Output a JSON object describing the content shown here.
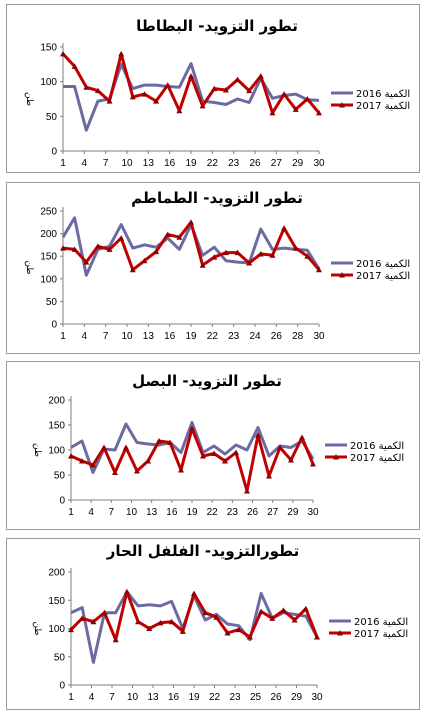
{
  "chart_data": [
    {
      "type": "line",
      "title": "تطور التزويد- البطاطا",
      "ylabel": "طن",
      "ylim": [
        0,
        150
      ],
      "yticks": [
        0,
        50,
        100,
        150
      ],
      "xtick_labels": [
        "1",
        "4",
        "7",
        "10",
        "13",
        "16",
        "19",
        "22",
        "23",
        "26",
        "27",
        "29",
        "30"
      ],
      "series": [
        {
          "name": "2016 الكمية",
          "color": "#6b6ba3",
          "values": [
            93,
            93,
            30,
            72,
            75,
            125,
            90,
            95,
            95,
            93,
            92,
            126,
            72,
            70,
            67,
            75,
            70,
            105,
            76,
            80,
            82,
            74,
            73
          ]
        },
        {
          "name": "2017 الكمية",
          "color": "#c00000",
          "values": [
            140,
            122,
            92,
            87,
            72,
            140,
            78,
            82,
            72,
            95,
            58,
            108,
            65,
            90,
            88,
            103,
            87,
            108,
            55,
            82,
            60,
            75,
            55
          ]
        }
      ]
    },
    {
      "type": "line",
      "title": "تطور التزويد- الطماطم",
      "ylabel": "طن",
      "ylim": [
        0,
        250
      ],
      "yticks": [
        0,
        50,
        100,
        150,
        200,
        250
      ],
      "xtick_labels": [
        "1",
        "4",
        "7",
        "10",
        "13",
        "16",
        "19",
        "22",
        "23",
        "24",
        "26",
        "28",
        "30"
      ],
      "series": [
        {
          "name": "2016 الكمية",
          "color": "#6b6ba3",
          "values": [
            192,
            235,
            108,
            165,
            172,
            220,
            168,
            175,
            170,
            190,
            165,
            220,
            152,
            170,
            140,
            137,
            135,
            210,
            165,
            168,
            165,
            163,
            122
          ]
        },
        {
          "name": "2017 الكمية",
          "color": "#c00000",
          "values": [
            168,
            165,
            137,
            172,
            165,
            190,
            120,
            140,
            160,
            198,
            192,
            225,
            130,
            148,
            158,
            158,
            135,
            155,
            152,
            212,
            168,
            150,
            120
          ]
        }
      ]
    },
    {
      "type": "line",
      "title": "تطور التزويد- البصل",
      "ylabel": "طن",
      "ylim": [
        0,
        200
      ],
      "yticks": [
        0,
        50,
        100,
        150,
        200
      ],
      "xtick_labels": [
        "1",
        "4",
        "7",
        "10",
        "13",
        "16",
        "19",
        "22",
        "23",
        "26",
        "27",
        "29",
        "30"
      ],
      "series": [
        {
          "name": "2016 الكمية",
          "color": "#6b6ba3",
          "values": [
            105,
            118,
            55,
            102,
            100,
            152,
            115,
            112,
            110,
            115,
            95,
            155,
            95,
            108,
            92,
            110,
            100,
            145,
            88,
            108,
            105,
            118,
            82
          ]
        },
        {
          "name": "2017 الكمية",
          "color": "#c00000",
          "values": [
            88,
            78,
            70,
            105,
            55,
            105,
            58,
            78,
            118,
            115,
            60,
            143,
            88,
            93,
            78,
            95,
            18,
            130,
            48,
            105,
            80,
            125,
            72
          ]
        }
      ]
    },
    {
      "type": "line",
      "title": "تطورالتزويد- الفلفل الحار",
      "ylabel": "طن",
      "ylim": [
        0,
        200
      ],
      "yticks": [
        0,
        50,
        100,
        150,
        200
      ],
      "xtick_labels": [
        "1",
        "4",
        "7",
        "10",
        "13",
        "16",
        "19",
        "22",
        "23",
        "25",
        "26",
        "29",
        "30"
      ],
      "series": [
        {
          "name": "2016 الكمية",
          "color": "#6b6ba3",
          "values": [
            128,
            137,
            40,
            128,
            128,
            165,
            140,
            142,
            140,
            148,
            100,
            158,
            115,
            125,
            108,
            105,
            80,
            162,
            118,
            128,
            125,
            122,
            85
          ]
        },
        {
          "name": "2017 الكمية",
          "color": "#c00000",
          "values": [
            98,
            118,
            112,
            128,
            80,
            165,
            112,
            100,
            110,
            112,
            95,
            162,
            128,
            120,
            92,
            98,
            85,
            130,
            118,
            132,
            115,
            135,
            85
          ]
        }
      ]
    }
  ]
}
